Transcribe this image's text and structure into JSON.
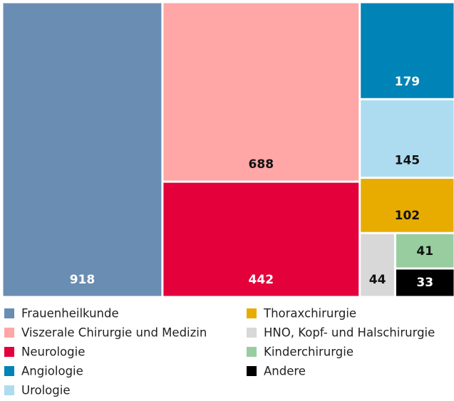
{
  "chart_data": {
    "type": "treemap",
    "categories": [
      "Frauenheilkunde",
      "Viszerale Chirurgie und Medizin",
      "Neurologie",
      "Angiologie",
      "Urologie",
      "Thoraxchirurgie",
      "HNO, Kopf- und Halschirurgie",
      "Kinderchirurgie",
      "Andere"
    ],
    "values": [
      918,
      688,
      442,
      179,
      145,
      102,
      44,
      41,
      33
    ],
    "colors": [
      "#6a8db3",
      "#ffa6a6",
      "#e4003b",
      "#0083b6",
      "#addcf0",
      "#e8ac00",
      "#d8d8d8",
      "#98cda0",
      "#000000"
    ]
  }
}
